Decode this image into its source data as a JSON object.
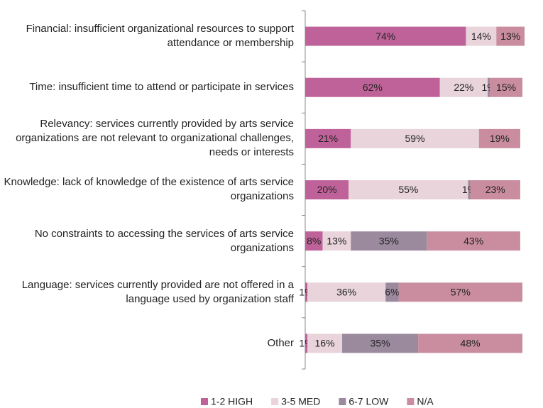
{
  "chart_data": {
    "type": "stacked_barh",
    "categories": [
      "Financial: insufficient organizational resources to support attendance or membership",
      "Time: insufficient time to attend or participate in services",
      "Relevancy: services currently provided by arts service organizations are not relevant to organizational challenges, needs or interests",
      "Knowledge: lack of knowledge of the existence of arts service organizations",
      "No constraints to accessing the services of arts service organizations",
      "Language: services currently provided are not offered in a language used by organization staff",
      "Other"
    ],
    "series": [
      {
        "name": "1-2 HIGH",
        "color": "#c0629a",
        "values": [
          74,
          62,
          21,
          20,
          8,
          1,
          1
        ],
        "value_labels": [
          "74%",
          "62%",
          "21%",
          "20%",
          "8%",
          "1%",
          "1%"
        ]
      },
      {
        "name": "3-5 MED",
        "color": "#e8d4da",
        "values": [
          14,
          22,
          59,
          55,
          13,
          36,
          16
        ],
        "value_labels": [
          "14%",
          "22%",
          "59%",
          "55%",
          "13%",
          "36%",
          "16%"
        ]
      },
      {
        "name": "6-7 LOW",
        "color": "#9b8a9e",
        "values": [
          null,
          1,
          null,
          1,
          35,
          6,
          35
        ],
        "value_labels": [
          null,
          "1%",
          null,
          "1%",
          "35%",
          "6%",
          "35%"
        ]
      },
      {
        "name": "N/A",
        "color": "#c98d9f",
        "values": [
          13,
          15,
          19,
          23,
          43,
          57,
          48
        ],
        "value_labels": [
          "13%",
          "15%",
          "19%",
          "23%",
          "43%",
          "57%",
          "48%"
        ]
      }
    ],
    "xlim": [
      0,
      100
    ],
    "legend": "bottom"
  }
}
